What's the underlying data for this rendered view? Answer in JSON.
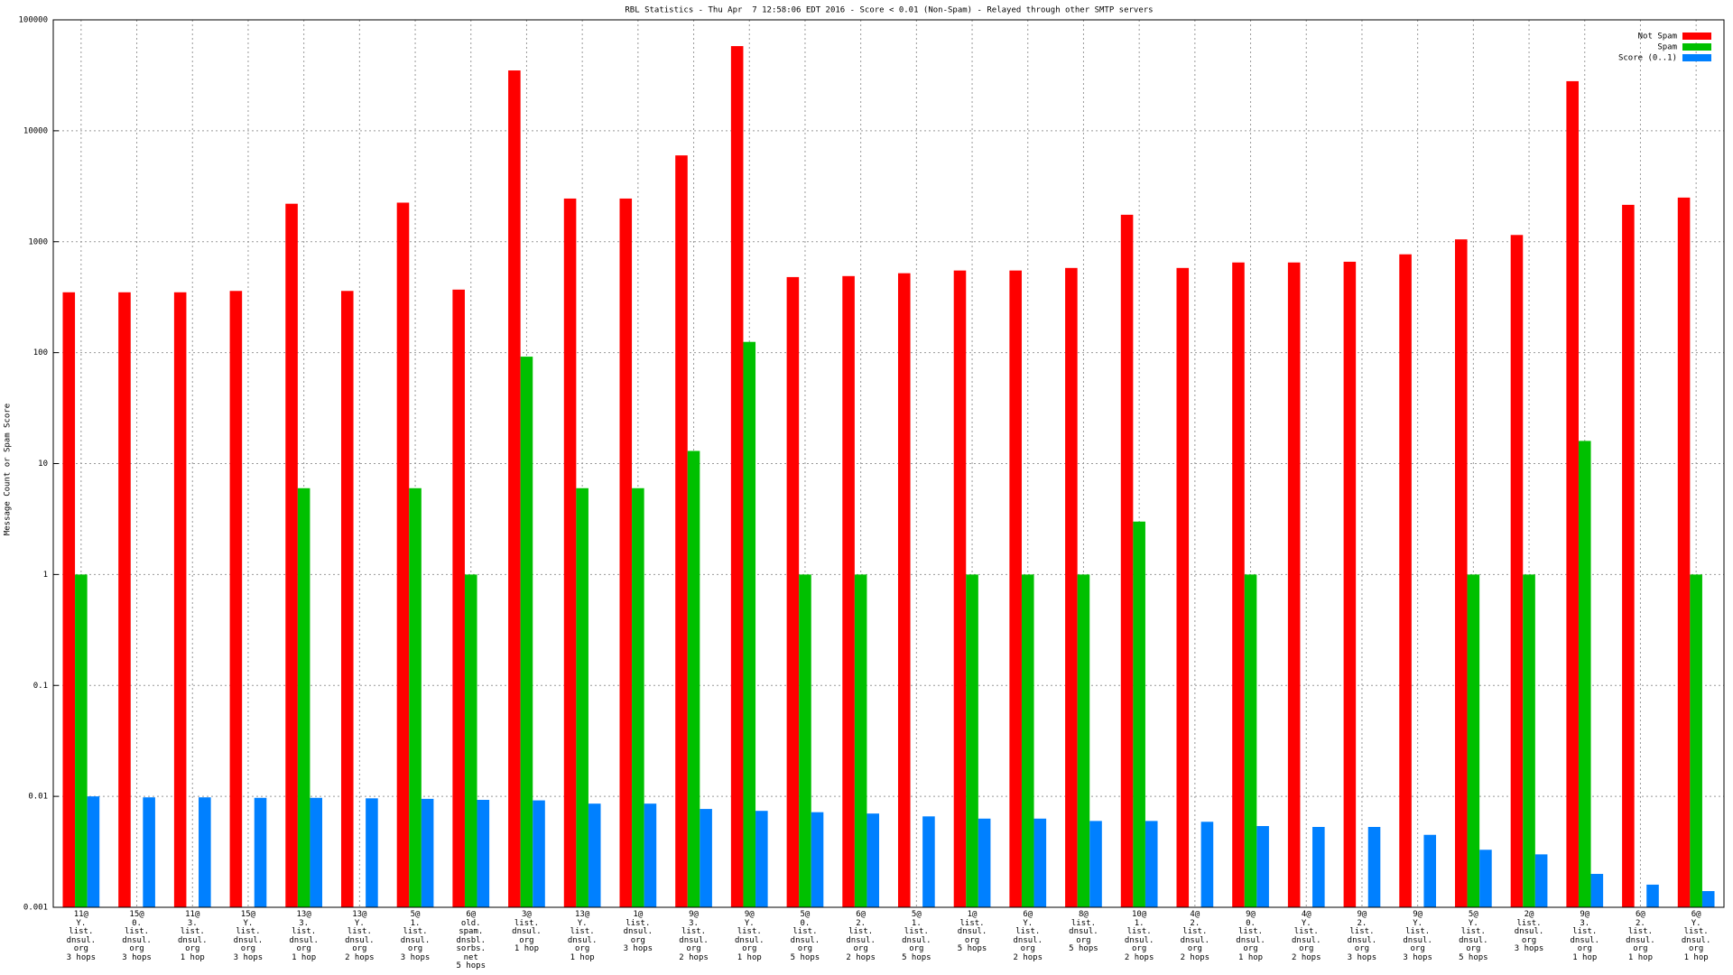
{
  "chart_data": {
    "type": "bar",
    "title": "RBL Statistics - Thu Apr  7 12:58:06 EDT 2016 - Score < 0.01 (Non-Spam) - Relayed through other SMTP servers",
    "y_label": "Message Count or Spam Score",
    "log_scale": true,
    "grid": true,
    "legend_position": "top-right",
    "categories": [
      "11@\nY.\nlist.\ndnsul.\norg\n3 hops",
      "15@\n0.\nlist.\ndnsul.\norg\n3 hops",
      "11@\n3.\nlist.\ndnsul.\norg\n1 hop",
      "15@\nY.\nlist.\ndnsul.\norg\n3 hops",
      "13@\n3.\nlist.\ndnsul.\norg\n1 hop",
      "13@\nY.\nlist.\ndnsul.\norg\n2 hops",
      "5@\n1.\nlist.\ndnsul.\norg\n3 hops",
      "6@\nold.\nspam.\ndnsbl.\nsorbs.\nnet\n5 hops",
      "3@\nlist.\ndnsul.\norg\n1 hop",
      "13@\nY.\nlist.\ndnsul.\norg\n1 hop",
      "1@\nlist.\ndnsul.\norg\n3 hops",
      "9@\n3.\nlist.\ndnsul.\norg\n2 hops",
      "9@\nY.\nlist.\ndnsul.\norg\n1 hop",
      "5@\n0.\nlist.\ndnsul.\norg\n5 hops",
      "6@\n2.\nlist.\ndnsul.\norg\n2 hops",
      "5@\n1.\nlist.\ndnsul.\norg\n5 hops",
      "1@\nlist.\ndnsul.\norg\n5 hops",
      "6@\nY.\nlist.\ndnsul.\norg\n2 hops",
      "8@\nlist.\ndnsul.\norg\n5 hops",
      "10@\n1.\nlist.\ndnsul.\norg\n2 hops",
      "4@\n2.\nlist.\ndnsul.\norg\n2 hops",
      "9@\n0.\nlist.\ndnsul.\norg\n1 hop",
      "4@\nY.\nlist.\ndnsul.\norg\n2 hops",
      "9@\n2.\nlist.\ndnsul.\norg\n3 hops",
      "9@\nY.\nlist.\ndnsul.\norg\n3 hops",
      "5@\nY.\nlist.\ndnsul.\norg\n5 hops",
      "2@\nlist.\ndnsul.\norg\n3 hops",
      "9@\n3.\nlist.\ndnsul.\norg\n1 hop",
      "6@\n2.\nlist.\ndnsul.\norg\n1 hop",
      "6@\nY.\nlist.\ndnsul.\norg\n1 hop"
    ],
    "series": [
      {
        "name": "Not Spam",
        "color": "#ff0000",
        "values": [
          350,
          350,
          350,
          360,
          2200,
          360,
          2250,
          370,
          35000,
          2450,
          2450,
          6000,
          58000,
          480,
          490,
          520,
          550,
          550,
          580,
          1750,
          580,
          650,
          650,
          660,
          770,
          1050,
          1150,
          28000,
          2150,
          2500
        ]
      },
      {
        "name": "Spam",
        "color": "#00c000",
        "values": [
          1,
          null,
          null,
          null,
          6,
          null,
          6,
          1,
          92,
          6,
          6,
          13,
          125,
          1,
          1,
          null,
          1,
          1,
          1,
          3,
          null,
          1,
          null,
          null,
          null,
          1,
          1,
          16,
          null,
          1
        ]
      },
      {
        "name": "Score (0..1)",
        "color": "#0080ff",
        "values": [
          0.01,
          0.0098,
          0.0098,
          0.0097,
          0.0097,
          0.0096,
          0.0095,
          0.0093,
          0.0092,
          0.0086,
          0.0086,
          0.0077,
          0.0074,
          0.0072,
          0.007,
          0.0066,
          0.0063,
          0.0063,
          0.006,
          0.006,
          0.0059,
          0.0054,
          0.0053,
          0.0053,
          0.0045,
          0.0033,
          0.003,
          0.002,
          0.0016,
          0.0014
        ]
      }
    ],
    "ylim": [
      0.001,
      100000
    ],
    "yticks": [
      0.001,
      0.01,
      0.1,
      1,
      10,
      100,
      1000,
      10000,
      100000
    ]
  }
}
